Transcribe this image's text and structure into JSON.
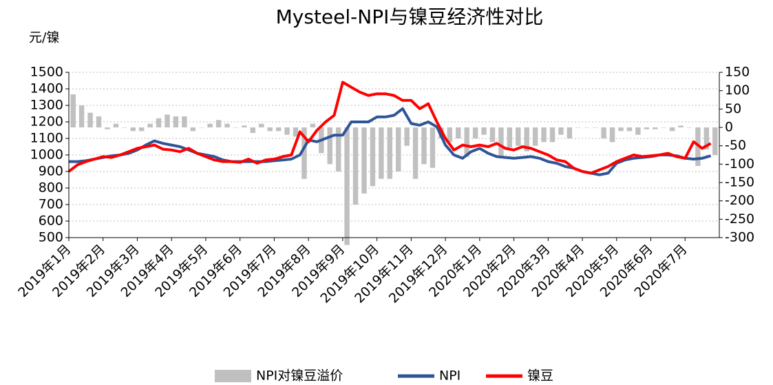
{
  "chart_data": {
    "type": "bar_line_dual",
    "title": "Mysteel-NPI与镍豆经济性对比",
    "ylabel": "元/镍",
    "categories": [
      "2019年1月",
      null,
      null,
      null,
      "2019年2月",
      null,
      null,
      null,
      "2019年3月",
      null,
      null,
      null,
      "2019年4月",
      null,
      null,
      null,
      "2019年5月",
      null,
      null,
      null,
      "2019年6月",
      null,
      null,
      null,
      "2019年7月",
      null,
      null,
      null,
      "2019年8月",
      null,
      null,
      null,
      "2019年9月",
      null,
      null,
      null,
      "2019年10月",
      null,
      null,
      null,
      "2019年11月",
      null,
      null,
      null,
      "2019年12月",
      null,
      null,
      null,
      "2020年1月",
      null,
      null,
      null,
      "2020年2月",
      null,
      null,
      null,
      "2020年3月",
      null,
      null,
      null,
      "2020年4月",
      null,
      null,
      null,
      "2020年5月",
      null,
      null,
      null,
      "2020年6月",
      null,
      null,
      null,
      "2020年7月",
      null,
      null,
      null
    ],
    "series": [
      {
        "name": "NPI对镍豆溢价",
        "kind": "bar",
        "axis": "y2",
        "color": "#c0c0c0",
        "values": [
          90,
          60,
          40,
          30,
          -5,
          10,
          0,
          -10,
          -10,
          10,
          25,
          35,
          30,
          30,
          -10,
          0,
          10,
          20,
          10,
          0,
          5,
          -15,
          10,
          -10,
          -10,
          -20,
          -25,
          -140,
          10,
          -70,
          -100,
          -120,
          -320,
          -210,
          -180,
          -160,
          -140,
          -140,
          -120,
          -50,
          -140,
          -100,
          -110,
          -30,
          -40,
          -30,
          -80,
          -30,
          -20,
          -40,
          -80,
          -55,
          -50,
          -65,
          -50,
          -40,
          -40,
          -20,
          -30,
          0,
          0,
          0,
          -30,
          -40,
          -10,
          -10,
          -20,
          -5,
          -5,
          0,
          -10,
          5,
          0,
          -105,
          -60,
          -75
        ]
      },
      {
        "name": "NPI",
        "kind": "line",
        "color": "#2f5597",
        "values": [
          960,
          960,
          965,
          975,
          985,
          995,
          1000,
          1010,
          1030,
          1060,
          1085,
          1070,
          1060,
          1050,
          1030,
          1010,
          1000,
          990,
          970,
          960,
          960,
          960,
          960,
          960,
          965,
          970,
          975,
          1000,
          1090,
          1080,
          1100,
          1120,
          1120,
          1200,
          1200,
          1200,
          1230,
          1230,
          1240,
          1280,
          1190,
          1180,
          1200,
          1170,
          1060,
          1000,
          980,
          1020,
          1040,
          1010,
          990,
          985,
          980,
          985,
          990,
          980,
          960,
          950,
          930,
          920,
          900,
          890,
          880,
          890,
          950,
          970,
          980,
          985,
          990,
          1000,
          1000,
          995,
          980,
          975,
          980,
          995
        ]
      },
      {
        "name": "镍豆",
        "kind": "line",
        "color": "#ff0000",
        "values": [
          900,
          940,
          960,
          975,
          990,
          985,
          1000,
          1020,
          1040,
          1050,
          1060,
          1035,
          1030,
          1020,
          1040,
          1010,
          990,
          970,
          960,
          960,
          955,
          975,
          950,
          970,
          975,
          990,
          1000,
          1140,
          1080,
          1150,
          1200,
          1240,
          1440,
          1410,
          1380,
          1360,
          1370,
          1370,
          1360,
          1330,
          1330,
          1280,
          1310,
          1200,
          1100,
          1030,
          1060,
          1050,
          1060,
          1050,
          1070,
          1040,
          1030,
          1050,
          1040,
          1020,
          1000,
          970,
          960,
          920,
          900,
          890,
          910,
          930,
          960,
          980,
          1000,
          990,
          995,
          1000,
          1010,
          990,
          980,
          1080,
          1040,
          1070
        ]
      }
    ],
    "ylim": [
      500,
      1500
    ],
    "yticks": [
      500,
      600,
      700,
      800,
      900,
      1000,
      1100,
      1200,
      1300,
      1400,
      1500
    ],
    "y2lim": [
      -300,
      150
    ],
    "y2ticks": [
      -300,
      -250,
      -200,
      -150,
      -100,
      -50,
      0,
      50,
      100,
      150
    ],
    "grid": true,
    "legend": "bottom"
  }
}
